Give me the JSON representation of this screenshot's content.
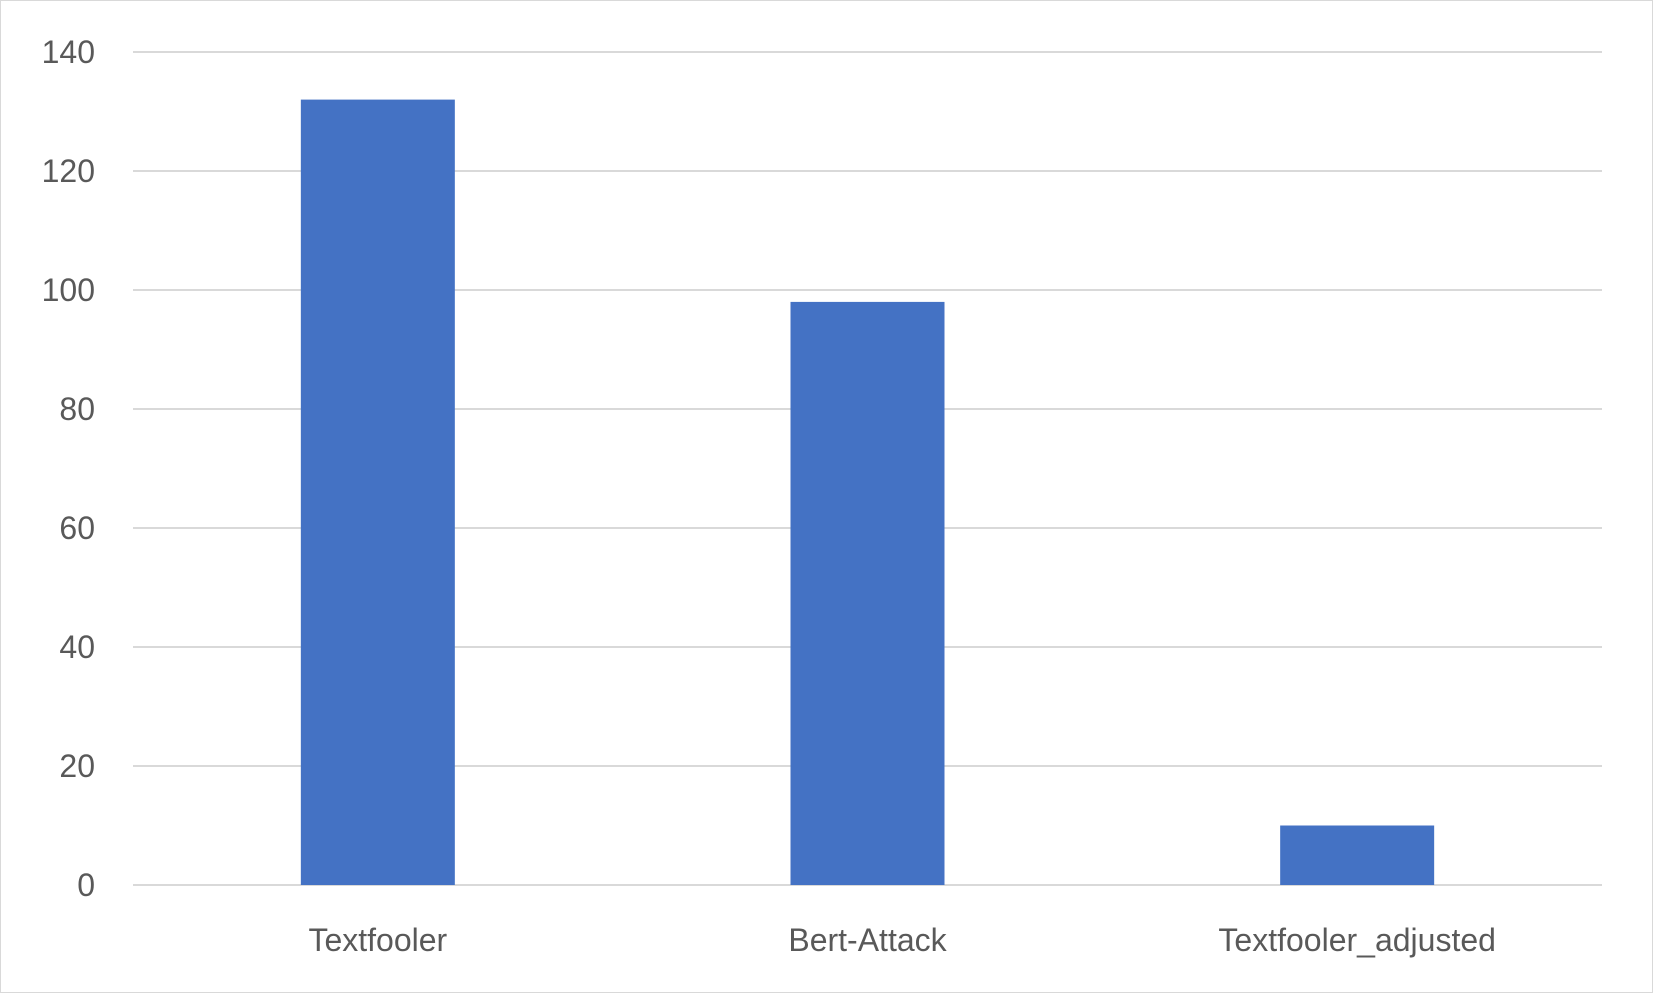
{
  "chart_data": {
    "type": "bar",
    "categories": [
      "Textfooler",
      "Bert-Attack",
      "Textfooler_adjusted"
    ],
    "values": [
      132,
      98,
      10
    ],
    "title": "",
    "xlabel": "",
    "ylabel": "",
    "ylim": [
      0,
      140
    ],
    "yticks": [
      "0",
      "20",
      "40",
      "60",
      "80",
      "100",
      "120",
      "140"
    ],
    "grid": true,
    "legend": "none",
    "bar_color": "#4472c4"
  }
}
